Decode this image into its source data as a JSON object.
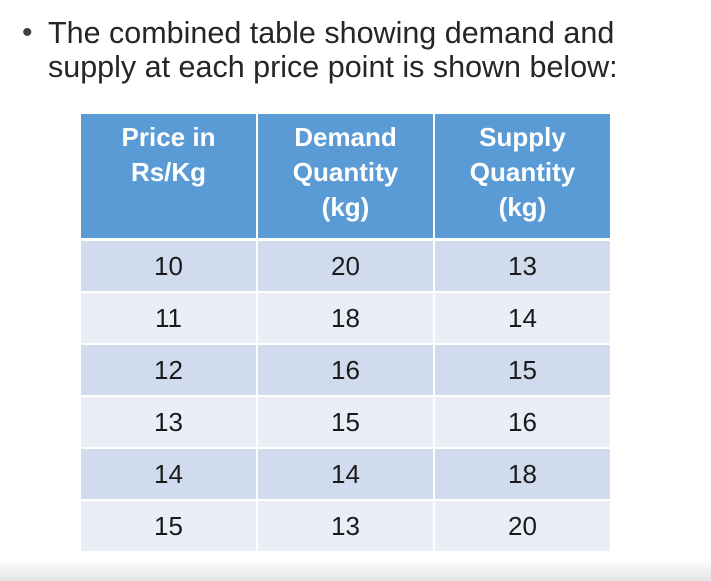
{
  "bullet": {
    "symbol": "•",
    "text": "The combined table showing demand and\nsupply at each price point is shown below:"
  },
  "table": {
    "headers": [
      "Price in\nRs/Kg",
      "Demand\nQuantity\n(kg)",
      "Supply\nQuantity\n(kg)"
    ],
    "rows": [
      [
        "10",
        "20",
        "13"
      ],
      [
        "11",
        "18",
        "14"
      ],
      [
        "12",
        "16",
        "15"
      ],
      [
        "13",
        "15",
        "16"
      ],
      [
        "14",
        "14",
        "18"
      ],
      [
        "15",
        "13",
        "20"
      ]
    ]
  },
  "colors": {
    "header_bg": "#5b9bd5",
    "row_dark": "#d0dcee",
    "row_light": "#e9eef7"
  }
}
